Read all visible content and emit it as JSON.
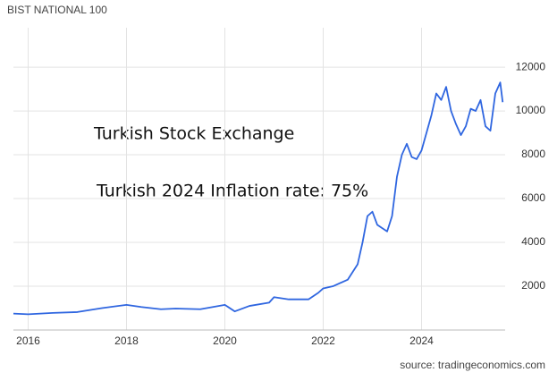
{
  "chart_data": {
    "type": "line",
    "title": "BIST NATIONAL 100",
    "annotations": [
      "Turkish Stock Exchange",
      "Turkish 2024 Inflation rate: 75%"
    ],
    "source": "source: tradingeconomics.com",
    "x": [
      2015.7,
      2016.0,
      2016.5,
      2017.0,
      2017.5,
      2018.0,
      2018.3,
      2018.7,
      2019.0,
      2019.5,
      2020.0,
      2020.2,
      2020.5,
      2020.9,
      2021.0,
      2021.3,
      2021.7,
      2021.9,
      2022.0,
      2022.2,
      2022.5,
      2022.7,
      2022.8,
      2022.9,
      2023.0,
      2023.1,
      2023.3,
      2023.4,
      2023.5,
      2023.6,
      2023.7,
      2023.8,
      2023.9,
      2024.0,
      2024.1,
      2024.2,
      2024.3,
      2024.4,
      2024.5,
      2024.6,
      2024.7,
      2024.8,
      2024.9,
      2025.0,
      2025.1,
      2025.2,
      2025.3,
      2025.4,
      2025.5,
      2025.6,
      2025.65
    ],
    "series": [
      {
        "name": "BIST National 100",
        "color": "#2f66e0",
        "values": [
          750,
          720,
          780,
          820,
          1000,
          1150,
          1050,
          950,
          980,
          950,
          1150,
          850,
          1100,
          1250,
          1500,
          1400,
          1400,
          1700,
          1900,
          2000,
          2300,
          3000,
          4000,
          5200,
          5400,
          4800,
          4500,
          5200,
          7000,
          8000,
          8500,
          7900,
          7800,
          8200,
          9000,
          9800,
          10800,
          10500,
          11100,
          10000,
          9400,
          8900,
          9300,
          10100,
          10000,
          10500,
          9300,
          9100,
          10800,
          11300,
          10400
        ]
      }
    ],
    "xlim": [
      2015.7,
      2025.7
    ],
    "xticks": [
      2016,
      2018,
      2020,
      2022,
      2024
    ],
    "ylim": [
      0,
      13800
    ],
    "yticks": [
      2000,
      4000,
      6000,
      8000,
      10000,
      12000
    ],
    "grid": true
  }
}
